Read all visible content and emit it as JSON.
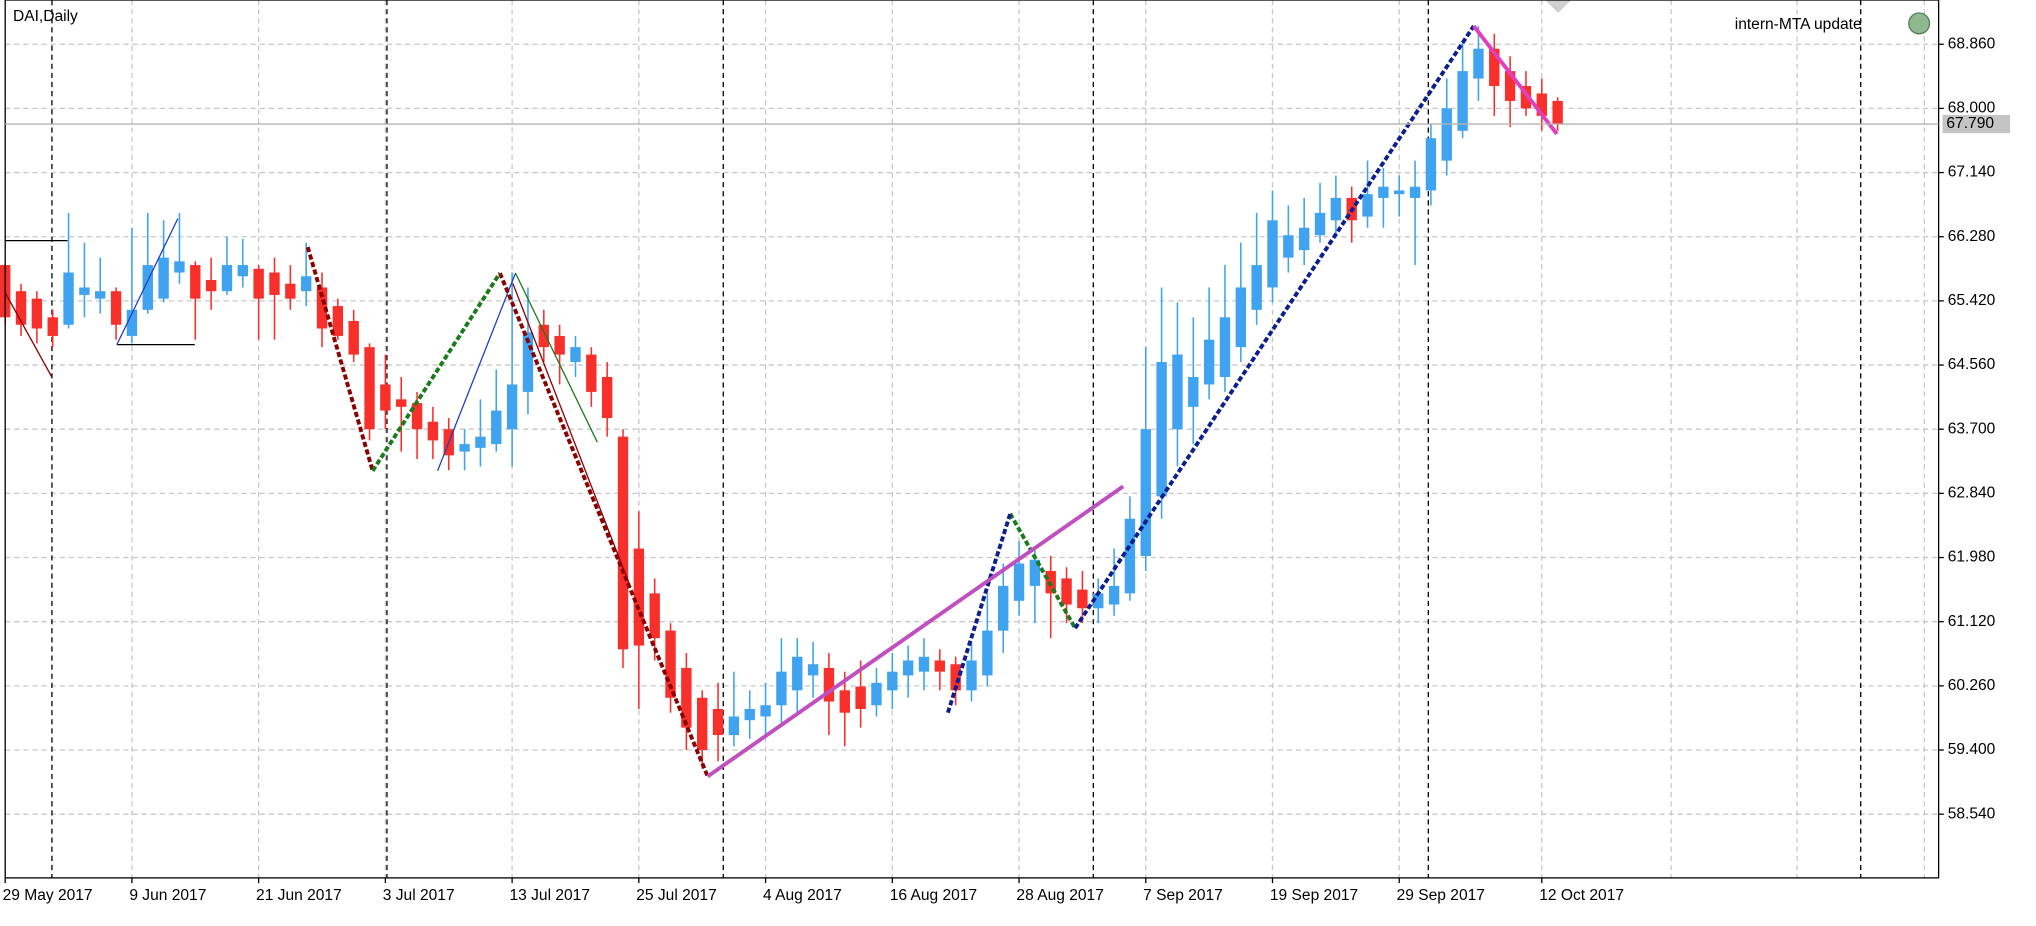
{
  "chart_data": {
    "type": "candlestick",
    "title": "DAI,Daily",
    "annotation": "intern-MTA update",
    "categories": [
      "29 May 2017",
      null,
      null,
      null,
      null,
      null,
      null,
      null,
      "9 Jun 2017",
      null,
      null,
      null,
      null,
      null,
      null,
      null,
      "21 Jun 2017",
      null,
      null,
      null,
      null,
      null,
      null,
      null,
      "3 Jul 2017",
      null,
      null,
      null,
      null,
      null,
      null,
      null,
      "13 Jul 2017",
      null,
      null,
      null,
      null,
      null,
      null,
      null,
      "25 Jul 2017",
      null,
      null,
      null,
      null,
      null,
      null,
      null,
      "4 Aug 2017",
      null,
      null,
      null,
      null,
      null,
      null,
      null,
      "16 Aug 2017",
      null,
      null,
      null,
      null,
      null,
      null,
      null,
      "28 Aug 2017",
      null,
      null,
      null,
      null,
      null,
      null,
      null,
      "7 Sep 2017",
      null,
      null,
      null,
      null,
      null,
      null,
      null,
      "19 Sep 2017",
      null,
      null,
      null,
      null,
      null,
      null,
      null,
      "29 Sep 2017",
      null,
      null,
      null,
      null,
      null,
      null,
      null,
      null,
      "12 Oct 2017",
      null
    ],
    "open": [
      65.9,
      65.55,
      65.45,
      65.2,
      65.1,
      65.5,
      65.45,
      65.55,
      64.95,
      65.3,
      65.45,
      65.8,
      65.9,
      65.7,
      65.55,
      65.75,
      65.85,
      65.8,
      65.65,
      65.55,
      65.6,
      65.35,
      65.15,
      64.8,
      64.3,
      64.1,
      64.05,
      63.8,
      63.7,
      63.4,
      63.45,
      63.5,
      63.7,
      64.2,
      65.1,
      64.95,
      64.6,
      64.7,
      64.4,
      63.6,
      62.1,
      61.5,
      61.0,
      60.5,
      60.1,
      59.95,
      59.6,
      59.8,
      59.85,
      60.0,
      60.2,
      60.4,
      60.5,
      60.2,
      60.25,
      60.0,
      60.2,
      60.4,
      60.45,
      60.6,
      60.55,
      60.2,
      60.4,
      61.0,
      61.4,
      61.6,
      61.8,
      61.7,
      61.55,
      61.3,
      61.35,
      61.5,
      62.0,
      62.8,
      63.7,
      64.0,
      64.3,
      64.4,
      64.8,
      65.3,
      65.6,
      66.0,
      66.1,
      66.3,
      66.5,
      66.8,
      66.55,
      66.8,
      66.85,
      66.8,
      66.9,
      67.3,
      67.7,
      68.4,
      68.8,
      68.5,
      68.3,
      68.2,
      68.1
    ],
    "high": [
      65.92,
      65.65,
      65.55,
      65.3,
      66.6,
      66.2,
      66.0,
      65.6,
      66.4,
      66.6,
      66.5,
      66.6,
      65.95,
      66.0,
      66.28,
      66.25,
      65.9,
      66.0,
      65.9,
      66.2,
      65.8,
      65.45,
      65.3,
      64.85,
      64.7,
      64.4,
      64.2,
      64.0,
      63.85,
      63.7,
      64.1,
      64.5,
      65.8,
      65.6,
      65.3,
      65.1,
      64.95,
      64.8,
      64.6,
      63.7,
      62.6,
      61.7,
      61.1,
      60.7,
      60.2,
      60.3,
      60.45,
      60.2,
      60.3,
      60.9,
      60.9,
      60.85,
      60.7,
      60.45,
      60.6,
      60.5,
      60.7,
      60.8,
      60.9,
      60.75,
      60.65,
      60.85,
      61.5,
      61.9,
      62.2,
      62.1,
      62.0,
      61.85,
      61.8,
      61.7,
      62.1,
      62.8,
      64.8,
      65.6,
      65.4,
      65.2,
      65.6,
      65.9,
      66.2,
      66.6,
      66.9,
      66.7,
      66.8,
      67.0,
      67.1,
      66.95,
      67.3,
      67.2,
      67.1,
      67.3,
      67.8,
      68.4,
      68.9,
      69.1,
      69.0,
      68.7,
      68.5,
      68.4,
      68.15
    ],
    "low": [
      65.1,
      64.95,
      64.85,
      64.8,
      65.05,
      65.2,
      65.25,
      64.9,
      64.85,
      65.25,
      65.4,
      65.65,
      64.9,
      65.3,
      65.5,
      65.6,
      64.9,
      64.9,
      65.3,
      65.35,
      64.8,
      64.9,
      64.6,
      63.55,
      63.7,
      63.4,
      63.3,
      63.3,
      63.15,
      63.15,
      63.2,
      63.4,
      63.2,
      63.9,
      64.6,
      64.3,
      64.4,
      64.0,
      63.6,
      60.5,
      59.95,
      60.6,
      59.9,
      59.4,
      59.15,
      59.25,
      59.45,
      59.55,
      59.6,
      59.75,
      59.9,
      60.1,
      59.6,
      59.45,
      59.7,
      59.85,
      59.95,
      60.1,
      60.2,
      60.2,
      60.0,
      60.05,
      60.25,
      60.7,
      61.2,
      61.1,
      60.9,
      61.1,
      61.1,
      61.1,
      61.2,
      61.4,
      61.8,
      62.5,
      63.2,
      63.5,
      64.1,
      64.2,
      64.6,
      65.1,
      65.4,
      65.8,
      65.9,
      66.2,
      66.3,
      66.2,
      66.4,
      66.4,
      66.55,
      65.9,
      66.7,
      67.1,
      67.6,
      68.1,
      67.9,
      67.75,
      67.9,
      67.7,
      67.7
    ],
    "close": [
      65.2,
      65.1,
      65.05,
      64.95,
      65.8,
      65.6,
      65.55,
      65.1,
      65.3,
      65.9,
      66.0,
      65.95,
      65.45,
      65.55,
      65.9,
      65.9,
      65.45,
      65.5,
      65.45,
      65.75,
      65.05,
      64.95,
      64.7,
      63.7,
      63.95,
      64.0,
      63.7,
      63.55,
      63.35,
      63.5,
      63.6,
      63.95,
      64.3,
      65.0,
      64.8,
      64.7,
      64.8,
      64.2,
      63.85,
      60.75,
      60.8,
      60.9,
      60.1,
      59.7,
      59.4,
      59.6,
      59.85,
      59.95,
      60.0,
      60.45,
      60.65,
      60.55,
      60.05,
      59.9,
      59.95,
      60.3,
      60.45,
      60.6,
      60.65,
      60.45,
      60.2,
      60.6,
      61.0,
      61.6,
      61.9,
      61.95,
      61.5,
      61.35,
      61.3,
      61.5,
      61.6,
      62.5,
      63.7,
      64.6,
      64.7,
      64.4,
      64.9,
      65.2,
      65.6,
      65.9,
      66.5,
      66.3,
      66.4,
      66.6,
      66.8,
      66.5,
      66.85,
      66.95,
      66.9,
      66.95,
      67.6,
      68.0,
      68.5,
      68.8,
      68.3,
      68.1,
      68.0,
      67.9,
      67.79
    ],
    "up_color": "#3fa3ef",
    "down_color": "#f8302c",
    "current_price": {
      "value": 67.79,
      "label": "67.790"
    },
    "ylim": [
      57.686,
      69.453
    ],
    "yticks": [
      {
        "value": 58.54,
        "label": "58.540"
      },
      {
        "value": 59.4,
        "label": "59.400"
      },
      {
        "value": 60.26,
        "label": "60.260"
      },
      {
        "value": 61.12,
        "label": "61.120"
      },
      {
        "value": 61.98,
        "label": "61.980"
      },
      {
        "value": 62.84,
        "label": "62.840"
      },
      {
        "value": 63.7,
        "label": "63.700"
      },
      {
        "value": 64.56,
        "label": "64.560"
      },
      {
        "value": 65.42,
        "label": "65.420"
      },
      {
        "value": 66.28,
        "label": "66.280"
      },
      {
        "value": 67.14,
        "label": "67.140"
      },
      {
        "value": 68,
        "label": "68.000"
      },
      {
        "value": 68.86,
        "label": "68.860"
      }
    ],
    "grid": true
  }
}
